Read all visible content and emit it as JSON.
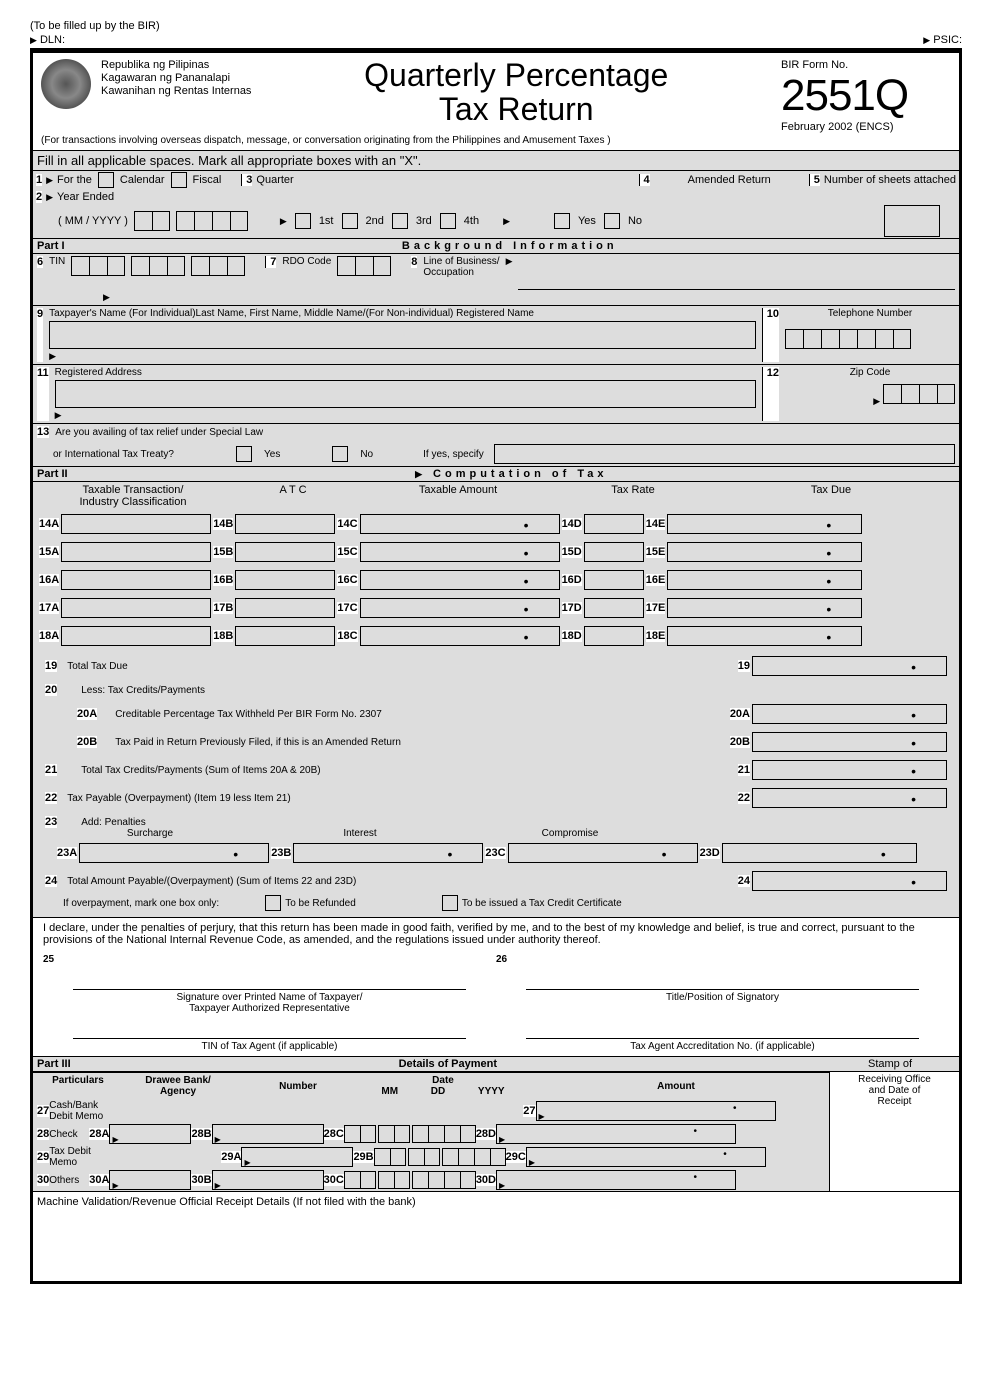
{
  "top": {
    "filled_by": "(To be filled up by the BIR)",
    "dln": "DLN:",
    "psic": "PSIC:"
  },
  "header": {
    "agency1": "Republika ng Pilipinas",
    "agency2": "Kagawaran ng Pananalapi",
    "agency3": "Kawanihan ng Rentas Internas",
    "title1": "Quarterly Percentage",
    "title2": "Tax Return",
    "form_label": "BIR Form No.",
    "form_no": "2551Q",
    "version": "February 2002 (ENCS)",
    "subnote": "(For transactions involving overseas dispatch, message, or conversation originating from the Philippines and Amusement Taxes )"
  },
  "instr": "Fill in all applicable spaces. Mark all appropriate boxes with an \"X\".",
  "line1": {
    "n1": "1",
    "for_the": "For the",
    "calendar": "Calendar",
    "fiscal": "Fiscal",
    "n3": "3",
    "quarter": "Quarter",
    "n4": "4",
    "amended": "Amended Return",
    "n5": "5",
    "sheets": "Number of sheets attached"
  },
  "line2": {
    "n2": "2",
    "year_ended": "Year Ended",
    "mmyyyy": "( MM / YYYY )",
    "q1": "1st",
    "q2": "2nd",
    "q3": "3rd",
    "q4": "4th",
    "yes": "Yes",
    "no": "No"
  },
  "part1": {
    "label": "Part I",
    "title": "Background  Information"
  },
  "f6": {
    "n": "6",
    "label": "TIN"
  },
  "f7": {
    "n": "7",
    "label": "RDO Code"
  },
  "f8": {
    "n": "8",
    "label": "Line of Business/",
    "label2": "Occupation"
  },
  "f9": {
    "n": "9",
    "label": "Taxpayer's Name (For Individual)Last Name, First Name, Middle Name/(For Non-individual) Registered Name"
  },
  "f10": {
    "n": "10",
    "label": "Telephone Number"
  },
  "f11": {
    "n": "11",
    "label": "Registered Address"
  },
  "f12": {
    "n": "12",
    "label": "Zip Code"
  },
  "f13": {
    "n": "13",
    "label": "Are you availing of tax relief under Special Law",
    "label2": "or International Tax Treaty?",
    "yes": "Yes",
    "no": "No",
    "specify": "If yes, specify"
  },
  "part2": {
    "label": "Part II",
    "title": "Computation  of  Tax"
  },
  "cols": {
    "c1": "Taxable Transaction/",
    "c1b": "Industry Classification",
    "c2": "A T C",
    "c3": "Taxable Amount",
    "c4": "Tax Rate",
    "c5": "Tax Due"
  },
  "rows": [
    "14",
    "15",
    "16",
    "17",
    "18"
  ],
  "f19": {
    "n": "19",
    "label": "Total Tax Due"
  },
  "f20": {
    "n": "20",
    "label": "Less: Tax Credits/Payments"
  },
  "f20a": {
    "n": "20A",
    "label": "Creditable Percentage Tax Withheld Per BIR Form No. 2307"
  },
  "f20b": {
    "n": "20B",
    "label": "Tax Paid in Return Previously Filed, if this is an Amended Return"
  },
  "f21": {
    "n": "21",
    "label": "Total Tax Credits/Payments (Sum of  Items 20A & 20B)"
  },
  "f22": {
    "n": "22",
    "label": "Tax Payable (Overpayment) (Item 19 less Item 21)"
  },
  "f23": {
    "n": "23",
    "label": "Add:  Penalties",
    "surcharge": "Surcharge",
    "interest": "Interest",
    "compromise": "Compromise"
  },
  "f24": {
    "n": "24",
    "label": "Total Amount Payable/(Overpayment) (Sum of Items 22 and 23D)"
  },
  "overpay": {
    "label": "If overpayment, mark one box only:",
    "opt1": "To  be  Refunded",
    "opt2": "To be issued a Tax Credit Certificate"
  },
  "declare": "I declare, under the penalties of perjury, that this return has been made in good faith, verified by me, and to the best of my knowledge and belief, is true and correct, pursuant to the provisions of the National Internal Revenue Code, as amended, and the regulations issued under authority thereof.",
  "sig": {
    "n25": "25",
    "n26": "26",
    "s1a": "Signature over Printed Name of Taxpayer/",
    "s1b": "Taxpayer Authorized Representative",
    "s2": "Title/Position of Signatory",
    "s3": "TIN of Tax Agent (if applicable)",
    "s4": "Tax Agent Accreditation No. (if applicable)"
  },
  "part3": {
    "label": "Part III",
    "title": "Details of Payment",
    "stamp1": "Stamp of",
    "stamp2": "Receiving Office",
    "stamp3": "and Date of",
    "stamp4": "Receipt"
  },
  "paycols": {
    "c1": "Particulars",
    "c2": "Drawee Bank/",
    "c2b": "Agency",
    "c3": "Number",
    "c4": "Date",
    "c4a": "MM",
    "c4b": "DD",
    "c4c": "YYYY",
    "c5": "Amount"
  },
  "p27": {
    "n": "27",
    "label": "Cash/Bank",
    "label2": "Debit Memo"
  },
  "p28": {
    "n": "28",
    "label": "Check",
    "a": "28A",
    "b": "28B",
    "c": "28C",
    "d": "28D"
  },
  "p29": {
    "n": "29",
    "label": "Tax Debit",
    "label2": "Memo",
    "a": "29A",
    "b": "29B",
    "c": "29C"
  },
  "p30": {
    "n": "30",
    "label": "Others",
    "a": "30A",
    "b": "30B",
    "c": "30C",
    "d": "30D"
  },
  "machine": "Machine Validation/Revenue Official Receipt Details (If not filed with the bank)"
}
